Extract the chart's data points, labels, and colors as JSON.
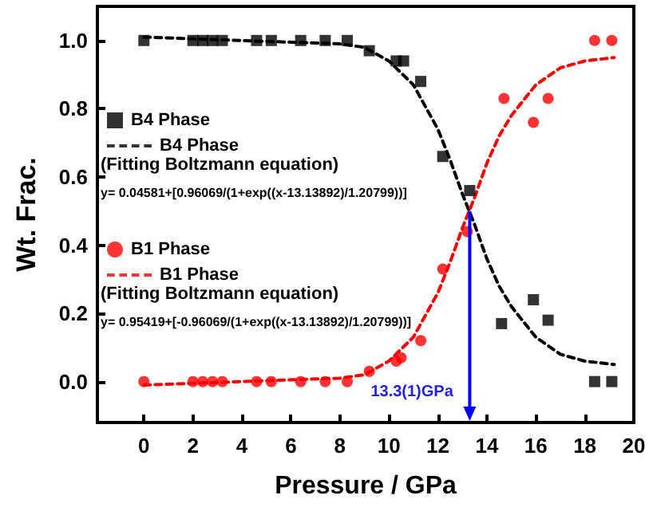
{
  "chart_data": {
    "type": "scatter",
    "xlabel": "Pressure / GPa",
    "ylabel": "Wt. Frac.",
    "xlim": [
      -1.9,
      20
    ],
    "xticks": [
      0,
      2,
      4,
      6,
      8,
      10,
      12,
      14,
      16,
      18,
      20
    ],
    "ylim": [
      -0.12,
      1.1
    ],
    "yticks": [
      {
        "value": 0,
        "label": "0.0"
      },
      {
        "value": 0.2,
        "label": "0.2"
      },
      {
        "value": 0.4,
        "label": "0.4"
      },
      {
        "value": 0.6,
        "label": "0.6"
      },
      {
        "value": 0.8,
        "label": "0.8"
      },
      {
        "value": 1,
        "label": "1.0"
      }
    ],
    "grid": false,
    "legend": "left",
    "series": [
      {
        "name": "B4 Phase",
        "type": "scatter",
        "marker": "square",
        "color": "#000000",
        "x": [
          0,
          2,
          2.4,
          2.8,
          3.2,
          4.6,
          5.2,
          6.4,
          7.4,
          8.3,
          9.2,
          10.3,
          10.6,
          11.3,
          12.2,
          13.3,
          14.6,
          15.9,
          16.5,
          18.4,
          19.1
        ],
        "values": [
          1,
          1,
          1,
          1,
          1,
          1,
          1,
          1,
          1,
          1,
          0.97,
          0.94,
          0.94,
          0.88,
          0.66,
          0.56,
          0.17,
          0.24,
          0.18,
          0,
          0
        ]
      },
      {
        "name": "B4 Phase",
        "type": "line",
        "marker": "none",
        "line_style": "dashed",
        "color": "#000000",
        "x": [
          0,
          8,
          9,
          10,
          11,
          12,
          12.5,
          13,
          13.5,
          14,
          14.5,
          15,
          16,
          17,
          18,
          19.2
        ],
        "values": [
          1.01,
          0.99,
          0.98,
          0.94,
          0.87,
          0.74,
          0.65,
          0.55,
          0.46,
          0.36,
          0.28,
          0.22,
          0.13,
          0.08,
          0.06,
          0.05
        ]
      },
      {
        "name": "B1 Phase",
        "type": "scatter",
        "marker": "circle",
        "color": "#ff0000",
        "x": [
          0,
          2,
          2.4,
          2.8,
          3.2,
          4.6,
          5.2,
          6.4,
          7.4,
          8.3,
          9.2,
          10.3,
          10.5,
          11.3,
          12.2,
          13.2,
          14.7,
          15.9,
          16.5,
          18.4,
          19.1
        ],
        "values": [
          0,
          0,
          0,
          0,
          0,
          0,
          0,
          0,
          0,
          0,
          0.03,
          0.06,
          0.07,
          0.12,
          0.33,
          0.44,
          0.83,
          0.76,
          0.83,
          1,
          1
        ]
      },
      {
        "name": "B1 Phase",
        "type": "line",
        "marker": "none",
        "line_style": "dashed",
        "color": "#ff0000",
        "x": [
          0,
          8,
          9,
          10,
          11,
          12,
          12.5,
          13,
          13.5,
          14,
          14.5,
          15,
          16,
          17,
          18,
          19.2
        ],
        "values": [
          -0.01,
          0.01,
          0.02,
          0.06,
          0.13,
          0.26,
          0.35,
          0.45,
          0.54,
          0.64,
          0.72,
          0.78,
          0.87,
          0.92,
          0.94,
          0.95
        ]
      }
    ],
    "annotations": [
      "(Fitting Boltzmann equation)",
      "y= 0.04581+[0.96069/(1+exp((x-13.13892)/1.20799))]",
      "(Fitting Boltzmann equation)",
      "y= 0.95419+[-0.96069/(1+exp((x-13.13892)/1.20799))]",
      {
        "text": "13.3(1)GPa",
        "x": 13.3,
        "y": 0.5
      }
    ]
  }
}
